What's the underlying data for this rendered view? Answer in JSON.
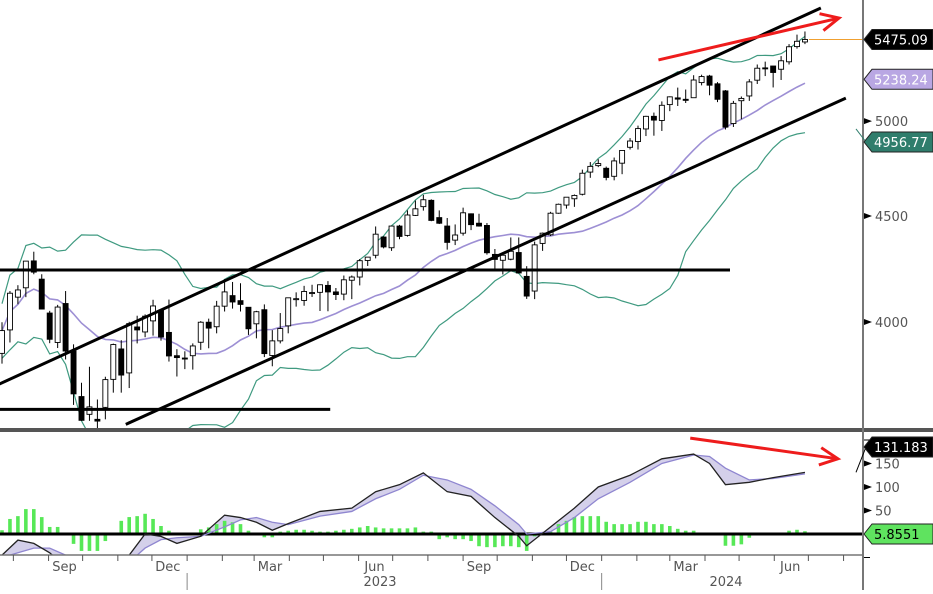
{
  "chart_data": [
    {
      "type": "candlestick",
      "scale": "log",
      "ylim": [
        3556,
        5720
      ],
      "xlim": [
        "2022-07-18",
        "2024-07-24"
      ],
      "grid": false,
      "y_ticks": [
        "4000",
        "4500",
        "5000"
      ],
      "x_month_labels": [
        {
          "date": "2022-09-15",
          "label": "Sep"
        },
        {
          "date": "2022-12-15",
          "label": "Dec"
        },
        {
          "date": "2023-03-15",
          "label": "Mar"
        },
        {
          "date": "2023-06-15",
          "label": "Jun"
        },
        {
          "date": "2023-09-15",
          "label": "Sep"
        },
        {
          "date": "2023-12-15",
          "label": "Dec"
        },
        {
          "date": "2024-03-15",
          "label": "Mar"
        },
        {
          "date": "2024-06-15",
          "label": "Jun"
        }
      ],
      "x_year_labels": [
        {
          "date": "2023-07-01",
          "label": "2023",
          "separator": "2023-01-01"
        },
        {
          "date": "2024-07-01",
          "label": "2024",
          "separator": "2024-01-01"
        }
      ],
      "colors": {
        "up_body": "#ffffff",
        "down_body": "#000000",
        "ma": "#9d8fd4",
        "bands": "#3f9a80",
        "last_line": "#f0a030",
        "arrow": "#ee1c1c"
      },
      "indicator_window": 20,
      "last_value_labels": [
        {
          "value": "5475.09",
          "bg": "#000000",
          "fg": "#ffffff"
        },
        {
          "value": "5238.24",
          "bg": "#b9a7e3",
          "fg": "#ffffff"
        },
        {
          "value": "4956.77",
          "bg": "#2f7d6c",
          "fg": "#ffffff"
        }
      ],
      "candles": [
        [
          "2022-07-22",
          3863,
          3999,
          3819,
          3962
        ],
        [
          "2022-07-29",
          3965,
          4140,
          3910,
          4130
        ],
        [
          "2022-08-05",
          4112,
          4167,
          4080,
          4145
        ],
        [
          "2022-08-12",
          4155,
          4280,
          4112,
          4280
        ],
        [
          "2022-08-19",
          4281,
          4325,
          4218,
          4228
        ],
        [
          "2022-08-26",
          4195,
          4218,
          4057,
          4058
        ],
        [
          "2022-09-02",
          4040,
          4050,
          3907,
          3924
        ],
        [
          "2022-09-09",
          3910,
          4077,
          3886,
          4067
        ],
        [
          "2022-09-16",
          4083,
          4140,
          3837,
          3873
        ],
        [
          "2022-09-23",
          3873,
          3902,
          3648,
          3693
        ],
        [
          "2022-09-30",
          3682,
          3739,
          3584,
          3586
        ],
        [
          "2022-10-07",
          3610,
          3806,
          3584,
          3640
        ],
        [
          "2022-10-14",
          3590,
          3670,
          3491,
          3583
        ],
        [
          "2022-10-21",
          3638,
          3764,
          3590,
          3752
        ],
        [
          "2022-10-28",
          3753,
          3905,
          3698,
          3901
        ],
        [
          "2022-11-04",
          3882,
          3920,
          3698,
          3771
        ],
        [
          "2022-11-11",
          3780,
          4001,
          3717,
          3993
        ],
        [
          "2022-11-18",
          3978,
          4028,
          3906,
          3965
        ],
        [
          "2022-11-25",
          3956,
          4034,
          3933,
          4026
        ],
        [
          "2022-12-02",
          4005,
          4100,
          3940,
          4072
        ],
        [
          "2022-12-09",
          4052,
          4052,
          3918,
          3934
        ],
        [
          "2022-12-16",
          3954,
          4101,
          3828,
          3852
        ],
        [
          "2022-12-23",
          3853,
          3881,
          3765,
          3845
        ],
        [
          "2022-12-30",
          3843,
          3872,
          3796,
          3840
        ],
        [
          "2023-01-06",
          3853,
          3906,
          3794,
          3895
        ],
        [
          "2023-01-13",
          3911,
          4004,
          3878,
          3999
        ],
        [
          "2023-01-20",
          3999,
          4015,
          3885,
          3973
        ],
        [
          "2023-01-27",
          3979,
          4095,
          3950,
          4071
        ],
        [
          "2023-02-03",
          4071,
          4195,
          4047,
          4136
        ],
        [
          "2023-02-10",
          4119,
          4182,
          4060,
          4090
        ],
        [
          "2023-02-17",
          4096,
          4176,
          4047,
          4079
        ],
        [
          "2023-02-24",
          4066,
          4067,
          3943,
          3970
        ],
        [
          "2023-03-03",
          3992,
          4050,
          3928,
          4046
        ],
        [
          "2023-03-10",
          4055,
          4079,
          3847,
          3862
        ],
        [
          "2023-03-17",
          3854,
          3964,
          3808,
          3917
        ],
        [
          "2023-03-24",
          3917,
          4040,
          3906,
          3971
        ],
        [
          "2023-03-31",
          3983,
          4110,
          3950,
          4109
        ],
        [
          "2023-04-07",
          4102,
          4134,
          4069,
          4105
        ],
        [
          "2023-04-14",
          4097,
          4164,
          4073,
          4138
        ],
        [
          "2023-04-21",
          4131,
          4169,
          4113,
          4133
        ],
        [
          "2023-04-28",
          4134,
          4171,
          4049,
          4169
        ],
        [
          "2023-05-05",
          4166,
          4186,
          4048,
          4136
        ],
        [
          "2023-05-12",
          4136,
          4154,
          4099,
          4124
        ],
        [
          "2023-05-19",
          4126,
          4212,
          4098,
          4192
        ],
        [
          "2023-05-26",
          4190,
          4212,
          4103,
          4205
        ],
        [
          "2023-06-02",
          4205,
          4290,
          4166,
          4282
        ],
        [
          "2023-06-09",
          4283,
          4299,
          4257,
          4299
        ],
        [
          "2023-06-16",
          4308,
          4448,
          4293,
          4410
        ],
        [
          "2023-06-23",
          4396,
          4400,
          4341,
          4348
        ],
        [
          "2023-06-30",
          4344,
          4450,
          4329,
          4450
        ],
        [
          "2023-07-07",
          4450,
          4456,
          4385,
          4399
        ],
        [
          "2023-07-14",
          4404,
          4528,
          4398,
          4505
        ],
        [
          "2023-07-21",
          4503,
          4578,
          4500,
          4536
        ],
        [
          "2023-07-28",
          4547,
          4607,
          4527,
          4582
        ],
        [
          "2023-08-04",
          4579,
          4584,
          4474,
          4478
        ],
        [
          "2023-08-11",
          4492,
          4528,
          4460,
          4464
        ],
        [
          "2023-08-18",
          4450,
          4490,
          4335,
          4370
        ],
        [
          "2023-08-25",
          4381,
          4458,
          4357,
          4406
        ],
        [
          "2023-09-01",
          4415,
          4542,
          4403,
          4516
        ],
        [
          "2023-09-08",
          4511,
          4513,
          4430,
          4457
        ],
        [
          "2023-09-15",
          4464,
          4511,
          4447,
          4450
        ],
        [
          "2023-09-22",
          4453,
          4465,
          4311,
          4320
        ],
        [
          "2023-09-29",
          4312,
          4338,
          4238,
          4288
        ],
        [
          "2023-10-06",
          4284,
          4318,
          4217,
          4308
        ],
        [
          "2023-10-13",
          4289,
          4394,
          4284,
          4327
        ],
        [
          "2023-10-20",
          4321,
          4394,
          4222,
          4224
        ],
        [
          "2023-10-27",
          4208,
          4256,
          4104,
          4117
        ],
        [
          "2023-11-03",
          4140,
          4374,
          4103,
          4358
        ],
        [
          "2023-11-10",
          4365,
          4418,
          4329,
          4415
        ],
        [
          "2023-11-17",
          4407,
          4521,
          4401,
          4514
        ],
        [
          "2023-11-24",
          4514,
          4562,
          4511,
          4559
        ],
        [
          "2023-12-01",
          4555,
          4595,
          4537,
          4595
        ],
        [
          "2023-12-08",
          4587,
          4609,
          4546,
          4604
        ],
        [
          "2023-12-15",
          4610,
          4738,
          4604,
          4719
        ],
        [
          "2023-12-22",
          4725,
          4778,
          4695,
          4755
        ],
        [
          "2023-12-29",
          4759,
          4793,
          4751,
          4770
        ],
        [
          "2024-01-05",
          4745,
          4754,
          4682,
          4697
        ],
        [
          "2024-01-12",
          4703,
          4802,
          4682,
          4784
        ],
        [
          "2024-01-19",
          4772,
          4842,
          4714,
          4840
        ],
        [
          "2024-01-26",
          4857,
          4907,
          4845,
          4891
        ],
        [
          "2024-02-02",
          4888,
          4975,
          4845,
          4959
        ],
        [
          "2024-02-09",
          4957,
          5030,
          4918,
          5027
        ],
        [
          "2024-02-16",
          5027,
          5048,
          4920,
          5006
        ],
        [
          "2024-02-23",
          5004,
          5111,
          4946,
          5089
        ],
        [
          "2024-03-01",
          5093,
          5140,
          5056,
          5137
        ],
        [
          "2024-03-08",
          5131,
          5190,
          5085,
          5124
        ],
        [
          "2024-03-15",
          5123,
          5179,
          5102,
          5117
        ],
        [
          "2024-03-22",
          5132,
          5262,
          5131,
          5234
        ],
        [
          "2024-03-29",
          5219,
          5265,
          5203,
          5254
        ],
        [
          "2024-04-05",
          5257,
          5264,
          5146,
          5204
        ],
        [
          "2024-04-12",
          5212,
          5222,
          5107,
          5123
        ],
        [
          "2024-04-19",
          5171,
          5176,
          4954,
          4967
        ],
        [
          "2024-04-26",
          4987,
          5114,
          4968,
          5100
        ],
        [
          "2024-05-03",
          5115,
          5139,
          5011,
          5128
        ],
        [
          "2024-05-10",
          5142,
          5239,
          5114,
          5223
        ],
        [
          "2024-05-17",
          5233,
          5325,
          5211,
          5303
        ],
        [
          "2024-05-24",
          5305,
          5342,
          5257,
          5304
        ],
        [
          "2024-05-31",
          5316,
          5315,
          5191,
          5278
        ],
        [
          "2024-06-07",
          5297,
          5375,
          5234,
          5347
        ],
        [
          "2024-06-14",
          5341,
          5447,
          5325,
          5431
        ],
        [
          "2024-06-21",
          5432,
          5505,
          5420,
          5464
        ],
        [
          "2024-06-28",
          5460,
          5524,
          5447,
          5475.09
        ]
      ],
      "annotations": {
        "lines": [
          {
            "from": [
              "2022-07-18",
              3730
            ],
            "to": [
              "2024-07-12",
              5670
            ]
          },
          {
            "from": [
              "2022-11-08",
              3570
            ],
            "to": [
              "2024-08-03",
              5130
            ]
          },
          {
            "from": [
              "2022-07-18",
              4238
            ],
            "to": [
              "2024-04-23",
              4238
            ]
          },
          {
            "from": [
              "2022-07-18",
              3630
            ],
            "to": [
              "2023-05-07",
              3630
            ]
          }
        ],
        "arrows": [
          {
            "from": [
              "2024-02-20",
              5352
            ],
            "to": [
              "2024-07-28",
              5607
            ]
          }
        ]
      }
    },
    {
      "type": "line+bar",
      "ylim": [
        -45,
        205
      ],
      "y_ticks": [
        "50",
        "100",
        "150"
      ],
      "colors": {
        "line": "#222222",
        "signal": "#8f86d0",
        "fill": "#d4d0ea",
        "histogram": "#57e857",
        "zero": "#000000"
      },
      "last_value_labels": [
        {
          "value": "131.183",
          "bg": "#000000",
          "fg": "#ffffff"
        },
        {
          "value": "5.8551",
          "bg": "#5fe35f",
          "fg": "#000000"
        }
      ],
      "oscillator": [
        [
          "2022-07-22",
          -45,
          -50
        ],
        [
          "2022-08-05",
          -13,
          -40
        ],
        [
          "2022-08-19",
          -20,
          -30
        ],
        [
          "2022-09-02",
          -40,
          -30
        ],
        [
          "2022-09-16",
          -70,
          -45
        ],
        [
          "2022-10-14",
          -90,
          -70
        ],
        [
          "2022-11-11",
          -45,
          -60
        ],
        [
          "2022-11-25",
          0,
          -30
        ],
        [
          "2022-12-09",
          -5,
          -12
        ],
        [
          "2022-12-23",
          -20,
          -8
        ],
        [
          "2023-01-13",
          -5,
          -5
        ],
        [
          "2023-02-03",
          40,
          15
        ],
        [
          "2023-02-17",
          35,
          30
        ],
        [
          "2023-03-03",
          25,
          35
        ],
        [
          "2023-03-17",
          8,
          25
        ],
        [
          "2023-03-31",
          22,
          20
        ],
        [
          "2023-04-28",
          48,
          38
        ],
        [
          "2023-05-26",
          55,
          48
        ],
        [
          "2023-06-16",
          90,
          75
        ],
        [
          "2023-07-07",
          105,
          95
        ],
        [
          "2023-07-28",
          130,
          125
        ],
        [
          "2023-08-18",
          90,
          115
        ],
        [
          "2023-09-08",
          80,
          95
        ],
        [
          "2023-09-29",
          35,
          60
        ],
        [
          "2023-10-20",
          -5,
          20
        ],
        [
          "2023-10-27",
          -25,
          0
        ],
        [
          "2023-11-17",
          15,
          5
        ],
        [
          "2023-12-08",
          55,
          35
        ],
        [
          "2023-12-29",
          100,
          75
        ],
        [
          "2024-01-26",
          125,
          110
        ],
        [
          "2024-02-23",
          160,
          150
        ],
        [
          "2024-03-22",
          170,
          168
        ],
        [
          "2024-04-05",
          150,
          165
        ],
        [
          "2024-04-19",
          105,
          140
        ],
        [
          "2024-05-10",
          110,
          115
        ],
        [
          "2024-05-31",
          120,
          118
        ],
        [
          "2024-06-28",
          131.183,
          128
        ]
      ],
      "histogram": [
        8,
        32,
        38,
        53,
        53,
        36,
        15,
        15,
        0,
        -21,
        -36,
        -36,
        -36,
        -15,
        3,
        28,
        36,
        38,
        43,
        32,
        17,
        7,
        0,
        0,
        3,
        10,
        14,
        21,
        28,
        25,
        21,
        7,
        3,
        -7,
        -7,
        5,
        7,
        9,
        9,
        7,
        5,
        5,
        7,
        9,
        11,
        14,
        17,
        14,
        12,
        12,
        12,
        12,
        14,
        5,
        5,
        -11,
        -7,
        -11,
        -11,
        -15,
        -26,
        -28,
        -28,
        -26,
        -26,
        -28,
        -36,
        -5,
        2,
        5,
        21,
        28,
        36,
        38,
        38,
        38,
        26,
        21,
        21,
        21,
        26,
        26,
        21,
        21,
        17,
        11,
        7,
        7,
        0,
        0,
        -3,
        -25,
        -25,
        -22,
        -8,
        0,
        0,
        0,
        3,
        7,
        9,
        5.8551
      ],
      "annotations": {
        "arrows": [
          {
            "from": [
              "2024-03-19",
              204
            ],
            "to": [
              "2024-07-27",
              160
            ]
          }
        ]
      }
    }
  ]
}
